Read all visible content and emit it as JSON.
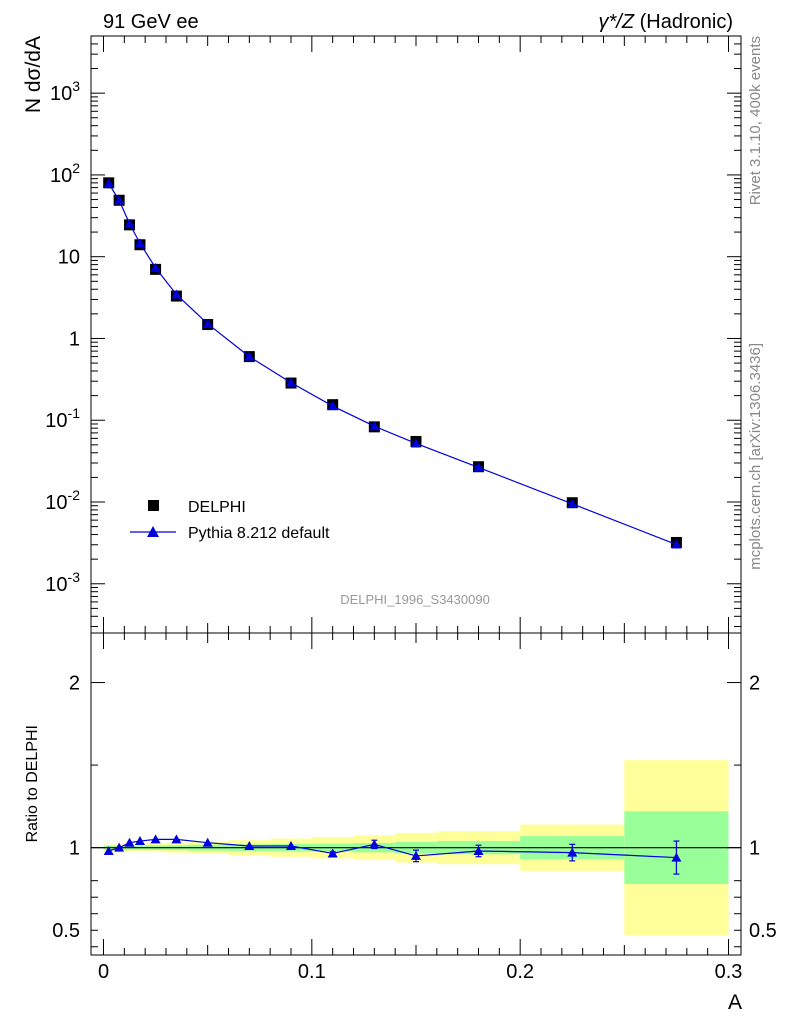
{
  "header": {
    "left": "91 GeV ee",
    "right_sym": "γ*/Z",
    "right_rest": " (Hadronic)"
  },
  "side_labels": {
    "rivet": "Rivet 3.1.10,  400k events",
    "mcplots": "mcplots.cern.ch [arXiv:1306.3436]"
  },
  "watermark": "DELPHI_1996_S3430090",
  "colors": {
    "data": "#000000",
    "mc": "#0000dd",
    "band_inner": "#99ff99",
    "band_outer": "#ffff99"
  },
  "chart_data": [
    {
      "type": "scatter",
      "ylabel": "N dσ/dA",
      "yscale": "log",
      "ylim": [
        0.00025,
        5000
      ],
      "xlim": [
        -0.006,
        0.306
      ],
      "y_ticks": [
        "10^-3",
        "10^-2",
        "10^-1",
        "1",
        "10",
        "10^2",
        "10^3"
      ],
      "legend": {
        "position": "middle-left",
        "entries": [
          "DELPHI",
          "Pythia 8.212 default"
        ]
      },
      "series": [
        {
          "name": "DELPHI",
          "marker": "square",
          "x": [
            0.0025,
            0.0075,
            0.0125,
            0.0175,
            0.025,
            0.035,
            0.05,
            0.07,
            0.09,
            0.11,
            0.13,
            0.15,
            0.18,
            0.225,
            0.275
          ],
          "y": [
            80,
            49,
            24.5,
            14,
            7,
            3.3,
            1.48,
            0.6,
            0.285,
            0.155,
            0.083,
            0.055,
            0.027,
            0.0098,
            0.0032
          ]
        },
        {
          "name": "Pythia 8.212 default",
          "marker": "triangle",
          "x": [
            0.0025,
            0.0075,
            0.0125,
            0.0175,
            0.025,
            0.035,
            0.05,
            0.07,
            0.09,
            0.11,
            0.13,
            0.15,
            0.18,
            0.225,
            0.275
          ],
          "y": [
            78.5,
            49,
            25.3,
            14.6,
            7.3,
            3.45,
            1.51,
            0.6,
            0.288,
            0.149,
            0.0845,
            0.052,
            0.0265,
            0.0095,
            0.00302
          ]
        }
      ]
    },
    {
      "type": "line",
      "ylabel": "Ratio to DELPHI",
      "xlabel": "A",
      "ylim": [
        0.35,
        2.3
      ],
      "xlim": [
        -0.006,
        0.306
      ],
      "x_tick_labels": [
        "0",
        "0.1",
        "0.2",
        "0.3"
      ],
      "y_tick_labels": [
        "0.5",
        "1",
        "2"
      ],
      "bands": {
        "edges": [
          0.0,
          0.005,
          0.01,
          0.015,
          0.02,
          0.03,
          0.04,
          0.06,
          0.08,
          0.1,
          0.12,
          0.14,
          0.16,
          0.2,
          0.25,
          0.3
        ],
        "inner": [
          0.012,
          0.012,
          0.013,
          0.013,
          0.014,
          0.015,
          0.018,
          0.02,
          0.022,
          0.024,
          0.028,
          0.035,
          0.04,
          0.07,
          0.22
        ],
        "outer": [
          0.02,
          0.02,
          0.022,
          0.022,
          0.025,
          0.03,
          0.035,
          0.045,
          0.055,
          0.065,
          0.075,
          0.09,
          0.1,
          0.14,
          0.53
        ]
      },
      "series": [
        {
          "name": "Pythia 8.212 default",
          "x": [
            0.0025,
            0.0075,
            0.0125,
            0.0175,
            0.025,
            0.035,
            0.05,
            0.07,
            0.09,
            0.11,
            0.13,
            0.15,
            0.18,
            0.225,
            0.275
          ],
          "y": [
            0.98,
            1.0,
            1.03,
            1.04,
            1.05,
            1.05,
            1.03,
            1.01,
            1.01,
            0.965,
            1.02,
            0.95,
            0.98,
            0.97,
            0.94
          ],
          "yerr": [
            0.003,
            0.003,
            0.004,
            0.004,
            0.004,
            0.005,
            0.006,
            0.006,
            0.008,
            0.01,
            0.025,
            0.035,
            0.035,
            0.05,
            0.1
          ]
        }
      ]
    }
  ]
}
